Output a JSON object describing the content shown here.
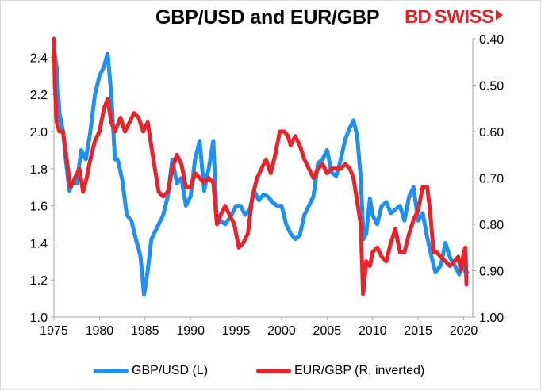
{
  "title": "GBP/USD and EUR/GBP",
  "logo": {
    "part1": "BD",
    "part2": "SWISS"
  },
  "colors": {
    "gbpusd": "#1f8ff2",
    "eurgbp": "#e8232a",
    "axis": "#a6a6a6"
  },
  "chart_data": {
    "type": "line",
    "grid": false,
    "legend_position": "bottom",
    "x_ticks": [
      1975,
      1980,
      1985,
      1990,
      1995,
      2000,
      2005,
      2010,
      2015,
      2020
    ],
    "xlim": [
      1975,
      2021
    ],
    "y_left": {
      "lim": [
        1.0,
        2.5
      ],
      "ticks": [
        "1.0",
        "1.2",
        "1.4",
        "1.6",
        "1.8",
        "2.0",
        "2.2",
        "2.4"
      ]
    },
    "y_right": {
      "lim": [
        0.4,
        1.0
      ],
      "inverted": true,
      "ticks": [
        "0.40",
        "0.50",
        "0.60",
        "0.70",
        "0.80",
        "0.90",
        "1.00"
      ]
    },
    "series": [
      {
        "name": "GBP/USD (L)",
        "axis": "left",
        "points": [
          [
            1975.0,
            2.44
          ],
          [
            1975.3,
            2.35
          ],
          [
            1975.6,
            2.1
          ],
          [
            1976.0,
            2.0
          ],
          [
            1976.3,
            1.85
          ],
          [
            1976.7,
            1.68
          ],
          [
            1977.0,
            1.72
          ],
          [
            1977.5,
            1.72
          ],
          [
            1978.0,
            1.9
          ],
          [
            1978.5,
            1.85
          ],
          [
            1979.0,
            2.0
          ],
          [
            1979.5,
            2.2
          ],
          [
            1980.0,
            2.3
          ],
          [
            1980.5,
            2.35
          ],
          [
            1980.9,
            2.42
          ],
          [
            1981.3,
            2.2
          ],
          [
            1981.7,
            1.85
          ],
          [
            1982.0,
            1.85
          ],
          [
            1982.5,
            1.74
          ],
          [
            1983.0,
            1.55
          ],
          [
            1983.5,
            1.52
          ],
          [
            1984.0,
            1.42
          ],
          [
            1984.5,
            1.33
          ],
          [
            1984.9,
            1.12
          ],
          [
            1985.3,
            1.25
          ],
          [
            1985.7,
            1.42
          ],
          [
            1986.0,
            1.45
          ],
          [
            1986.5,
            1.5
          ],
          [
            1987.0,
            1.55
          ],
          [
            1987.5,
            1.65
          ],
          [
            1988.0,
            1.85
          ],
          [
            1988.5,
            1.72
          ],
          [
            1989.0,
            1.75
          ],
          [
            1989.5,
            1.6
          ],
          [
            1990.0,
            1.65
          ],
          [
            1990.5,
            1.85
          ],
          [
            1991.0,
            1.95
          ],
          [
            1991.5,
            1.68
          ],
          [
            1992.0,
            1.8
          ],
          [
            1992.5,
            1.95
          ],
          [
            1992.9,
            1.5
          ],
          [
            1993.3,
            1.52
          ],
          [
            1993.8,
            1.5
          ],
          [
            1994.5,
            1.55
          ],
          [
            1995.0,
            1.6
          ],
          [
            1995.5,
            1.6
          ],
          [
            1996.0,
            1.55
          ],
          [
            1996.5,
            1.58
          ],
          [
            1997.0,
            1.68
          ],
          [
            1997.5,
            1.63
          ],
          [
            1998.0,
            1.66
          ],
          [
            1998.5,
            1.65
          ],
          [
            1999.0,
            1.62
          ],
          [
            1999.5,
            1.6
          ],
          [
            2000.0,
            1.6
          ],
          [
            2000.5,
            1.5
          ],
          [
            2001.0,
            1.45
          ],
          [
            2001.5,
            1.42
          ],
          [
            2002.0,
            1.44
          ],
          [
            2002.5,
            1.55
          ],
          [
            2003.0,
            1.6
          ],
          [
            2003.5,
            1.65
          ],
          [
            2004.0,
            1.83
          ],
          [
            2004.5,
            1.85
          ],
          [
            2005.0,
            1.9
          ],
          [
            2005.5,
            1.78
          ],
          [
            2006.0,
            1.76
          ],
          [
            2006.5,
            1.85
          ],
          [
            2007.0,
            1.96
          ],
          [
            2007.5,
            2.02
          ],
          [
            2007.9,
            2.06
          ],
          [
            2008.3,
            1.98
          ],
          [
            2008.7,
            1.75
          ],
          [
            2009.0,
            1.42
          ],
          [
            2009.3,
            1.45
          ],
          [
            2009.7,
            1.64
          ],
          [
            2010.0,
            1.55
          ],
          [
            2010.5,
            1.5
          ],
          [
            2011.0,
            1.6
          ],
          [
            2011.5,
            1.62
          ],
          [
            2012.0,
            1.56
          ],
          [
            2012.5,
            1.58
          ],
          [
            2013.0,
            1.6
          ],
          [
            2013.5,
            1.52
          ],
          [
            2014.0,
            1.65
          ],
          [
            2014.5,
            1.7
          ],
          [
            2015.0,
            1.52
          ],
          [
            2015.5,
            1.56
          ],
          [
            2016.0,
            1.43
          ],
          [
            2016.5,
            1.32
          ],
          [
            2016.9,
            1.24
          ],
          [
            2017.5,
            1.28
          ],
          [
            2018.0,
            1.4
          ],
          [
            2018.5,
            1.32
          ],
          [
            2019.0,
            1.28
          ],
          [
            2019.5,
            1.23
          ],
          [
            2020.0,
            1.3
          ],
          [
            2020.2,
            1.24
          ],
          [
            2020.4,
            1.24
          ]
        ]
      },
      {
        "name": "EUR/GBP (R, inverted)",
        "axis": "right",
        "points": [
          [
            1975.0,
            0.4
          ],
          [
            1975.1,
            0.5
          ],
          [
            1975.3,
            0.58
          ],
          [
            1975.6,
            0.6
          ],
          [
            1976.0,
            0.6
          ],
          [
            1976.4,
            0.66
          ],
          [
            1976.8,
            0.72
          ],
          [
            1977.3,
            0.7
          ],
          [
            1977.8,
            0.68
          ],
          [
            1978.2,
            0.73
          ],
          [
            1978.6,
            0.7
          ],
          [
            1979.0,
            0.66
          ],
          [
            1979.5,
            0.62
          ],
          [
            1980.0,
            0.6
          ],
          [
            1980.5,
            0.55
          ],
          [
            1980.9,
            0.53
          ],
          [
            1981.3,
            0.58
          ],
          [
            1981.7,
            0.6
          ],
          [
            1982.3,
            0.57
          ],
          [
            1982.8,
            0.6
          ],
          [
            1983.3,
            0.58
          ],
          [
            1983.8,
            0.56
          ],
          [
            1984.3,
            0.57
          ],
          [
            1984.8,
            0.6
          ],
          [
            1985.3,
            0.58
          ],
          [
            1985.6,
            0.62
          ],
          [
            1986.0,
            0.67
          ],
          [
            1986.5,
            0.73
          ],
          [
            1987.0,
            0.74
          ],
          [
            1987.5,
            0.73
          ],
          [
            1988.0,
            0.68
          ],
          [
            1988.5,
            0.65
          ],
          [
            1989.0,
            0.67
          ],
          [
            1989.5,
            0.72
          ],
          [
            1990.0,
            0.72
          ],
          [
            1990.5,
            0.69
          ],
          [
            1991.0,
            0.7
          ],
          [
            1991.5,
            0.71
          ],
          [
            1992.0,
            0.7
          ],
          [
            1992.5,
            0.71
          ],
          [
            1992.9,
            0.8
          ],
          [
            1993.3,
            0.78
          ],
          [
            1993.8,
            0.76
          ],
          [
            1994.3,
            0.78
          ],
          [
            1994.8,
            0.8
          ],
          [
            1995.3,
            0.85
          ],
          [
            1995.8,
            0.84
          ],
          [
            1996.3,
            0.82
          ],
          [
            1996.8,
            0.74
          ],
          [
            1997.3,
            0.7
          ],
          [
            1997.8,
            0.68
          ],
          [
            1998.3,
            0.66
          ],
          [
            1998.8,
            0.69
          ],
          [
            1999.3,
            0.65
          ],
          [
            1999.8,
            0.6
          ],
          [
            2000.3,
            0.6
          ],
          [
            2000.7,
            0.61
          ],
          [
            2001.0,
            0.63
          ],
          [
            2001.5,
            0.61
          ],
          [
            2002.0,
            0.63
          ],
          [
            2002.5,
            0.66
          ],
          [
            2003.0,
            0.68
          ],
          [
            2003.5,
            0.7
          ],
          [
            2004.0,
            0.68
          ],
          [
            2004.5,
            0.67
          ],
          [
            2005.0,
            0.69
          ],
          [
            2005.5,
            0.68
          ],
          [
            2006.0,
            0.68
          ],
          [
            2006.5,
            0.68
          ],
          [
            2007.0,
            0.67
          ],
          [
            2007.5,
            0.68
          ],
          [
            2007.9,
            0.7
          ],
          [
            2008.3,
            0.75
          ],
          [
            2008.7,
            0.8
          ],
          [
            2008.95,
            0.95
          ],
          [
            2009.3,
            0.88
          ],
          [
            2009.7,
            0.89
          ],
          [
            2010.0,
            0.86
          ],
          [
            2010.5,
            0.85
          ],
          [
            2011.0,
            0.87
          ],
          [
            2011.5,
            0.88
          ],
          [
            2012.0,
            0.84
          ],
          [
            2012.5,
            0.81
          ],
          [
            2013.0,
            0.86
          ],
          [
            2013.5,
            0.86
          ],
          [
            2014.0,
            0.82
          ],
          [
            2014.5,
            0.79
          ],
          [
            2015.0,
            0.77
          ],
          [
            2015.5,
            0.72
          ],
          [
            2016.0,
            0.72
          ],
          [
            2016.3,
            0.77
          ],
          [
            2016.7,
            0.86
          ],
          [
            2017.0,
            0.86
          ],
          [
            2017.5,
            0.87
          ],
          [
            2018.0,
            0.88
          ],
          [
            2018.5,
            0.89
          ],
          [
            2019.0,
            0.88
          ],
          [
            2019.4,
            0.87
          ],
          [
            2019.7,
            0.9
          ],
          [
            2020.0,
            0.86
          ],
          [
            2020.2,
            0.85
          ],
          [
            2020.3,
            0.93
          ]
        ]
      }
    ]
  }
}
